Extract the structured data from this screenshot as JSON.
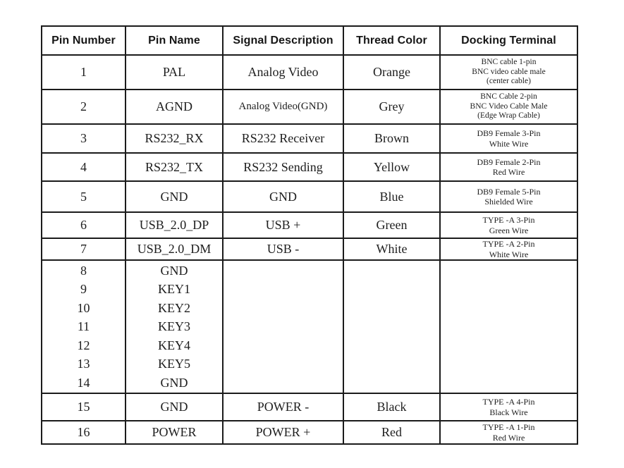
{
  "table": {
    "headers": [
      "Pin Number",
      "Pin Name",
      "Signal Description",
      "Thread Color",
      "Docking Terminal"
    ],
    "rows": [
      {
        "pin": "1",
        "name": "PAL",
        "signal": "Analog Video",
        "color": "Orange",
        "terminal": [
          "BNC cable 1-pin",
          "BNC video cable male",
          "(center cable)"
        ]
      },
      {
        "pin": "2",
        "name": "AGND",
        "signal": "Analog Video(GND)",
        "color": "Grey",
        "terminal": [
          "BNC Cable 2-pin",
          "BNC Video Cable Male",
          "(Edge Wrap Cable)"
        ]
      },
      {
        "pin": "3",
        "name": "RS232_RX",
        "signal": "RS232 Receiver",
        "color": "Brown",
        "terminal": [
          "DB9 Female 3-Pin",
          "White Wire"
        ]
      },
      {
        "pin": "4",
        "name": "RS232_TX",
        "signal": "RS232 Sending",
        "color": "Yellow",
        "terminal": [
          "DB9 Female 2-Pin",
          "Red Wire"
        ]
      },
      {
        "pin": "5",
        "name": "GND",
        "signal": "GND",
        "color": "Blue",
        "terminal": [
          "DB9 Female 5-Pin",
          "Shielded Wire"
        ]
      },
      {
        "pin": "6",
        "name": "USB_2.0_DP",
        "signal": "USB +",
        "color": "Green",
        "terminal": [
          "TYPE -A 3-Pin",
          "Green Wire"
        ]
      },
      {
        "pin": "7",
        "name": "USB_2.0_DM",
        "signal": "USB -",
        "color": "White",
        "terminal": [
          "TYPE -A 2-Pin",
          "White Wire"
        ]
      },
      {
        "group": true,
        "pins": [
          "8",
          "9",
          "10",
          "11",
          "12",
          "13",
          "14"
        ],
        "names": [
          "GND",
          "KEY1",
          "KEY2",
          "KEY3",
          "KEY4",
          "KEY5",
          "GND"
        ],
        "signal": "",
        "color": "",
        "terminal": []
      },
      {
        "pin": "15",
        "name": "GND",
        "signal": "POWER -",
        "color": "Black",
        "terminal": [
          "TYPE -A 4-Pin",
          "Black Wire"
        ]
      },
      {
        "pin": "16",
        "name": "POWER",
        "signal": "POWER +",
        "color": "Red",
        "terminal": [
          "TYPE -A 1-Pin",
          "Red Wire"
        ]
      }
    ]
  },
  "colors": {
    "border": "#1b1b1b",
    "text": "#1e1e1e",
    "background": "#ffffff"
  }
}
